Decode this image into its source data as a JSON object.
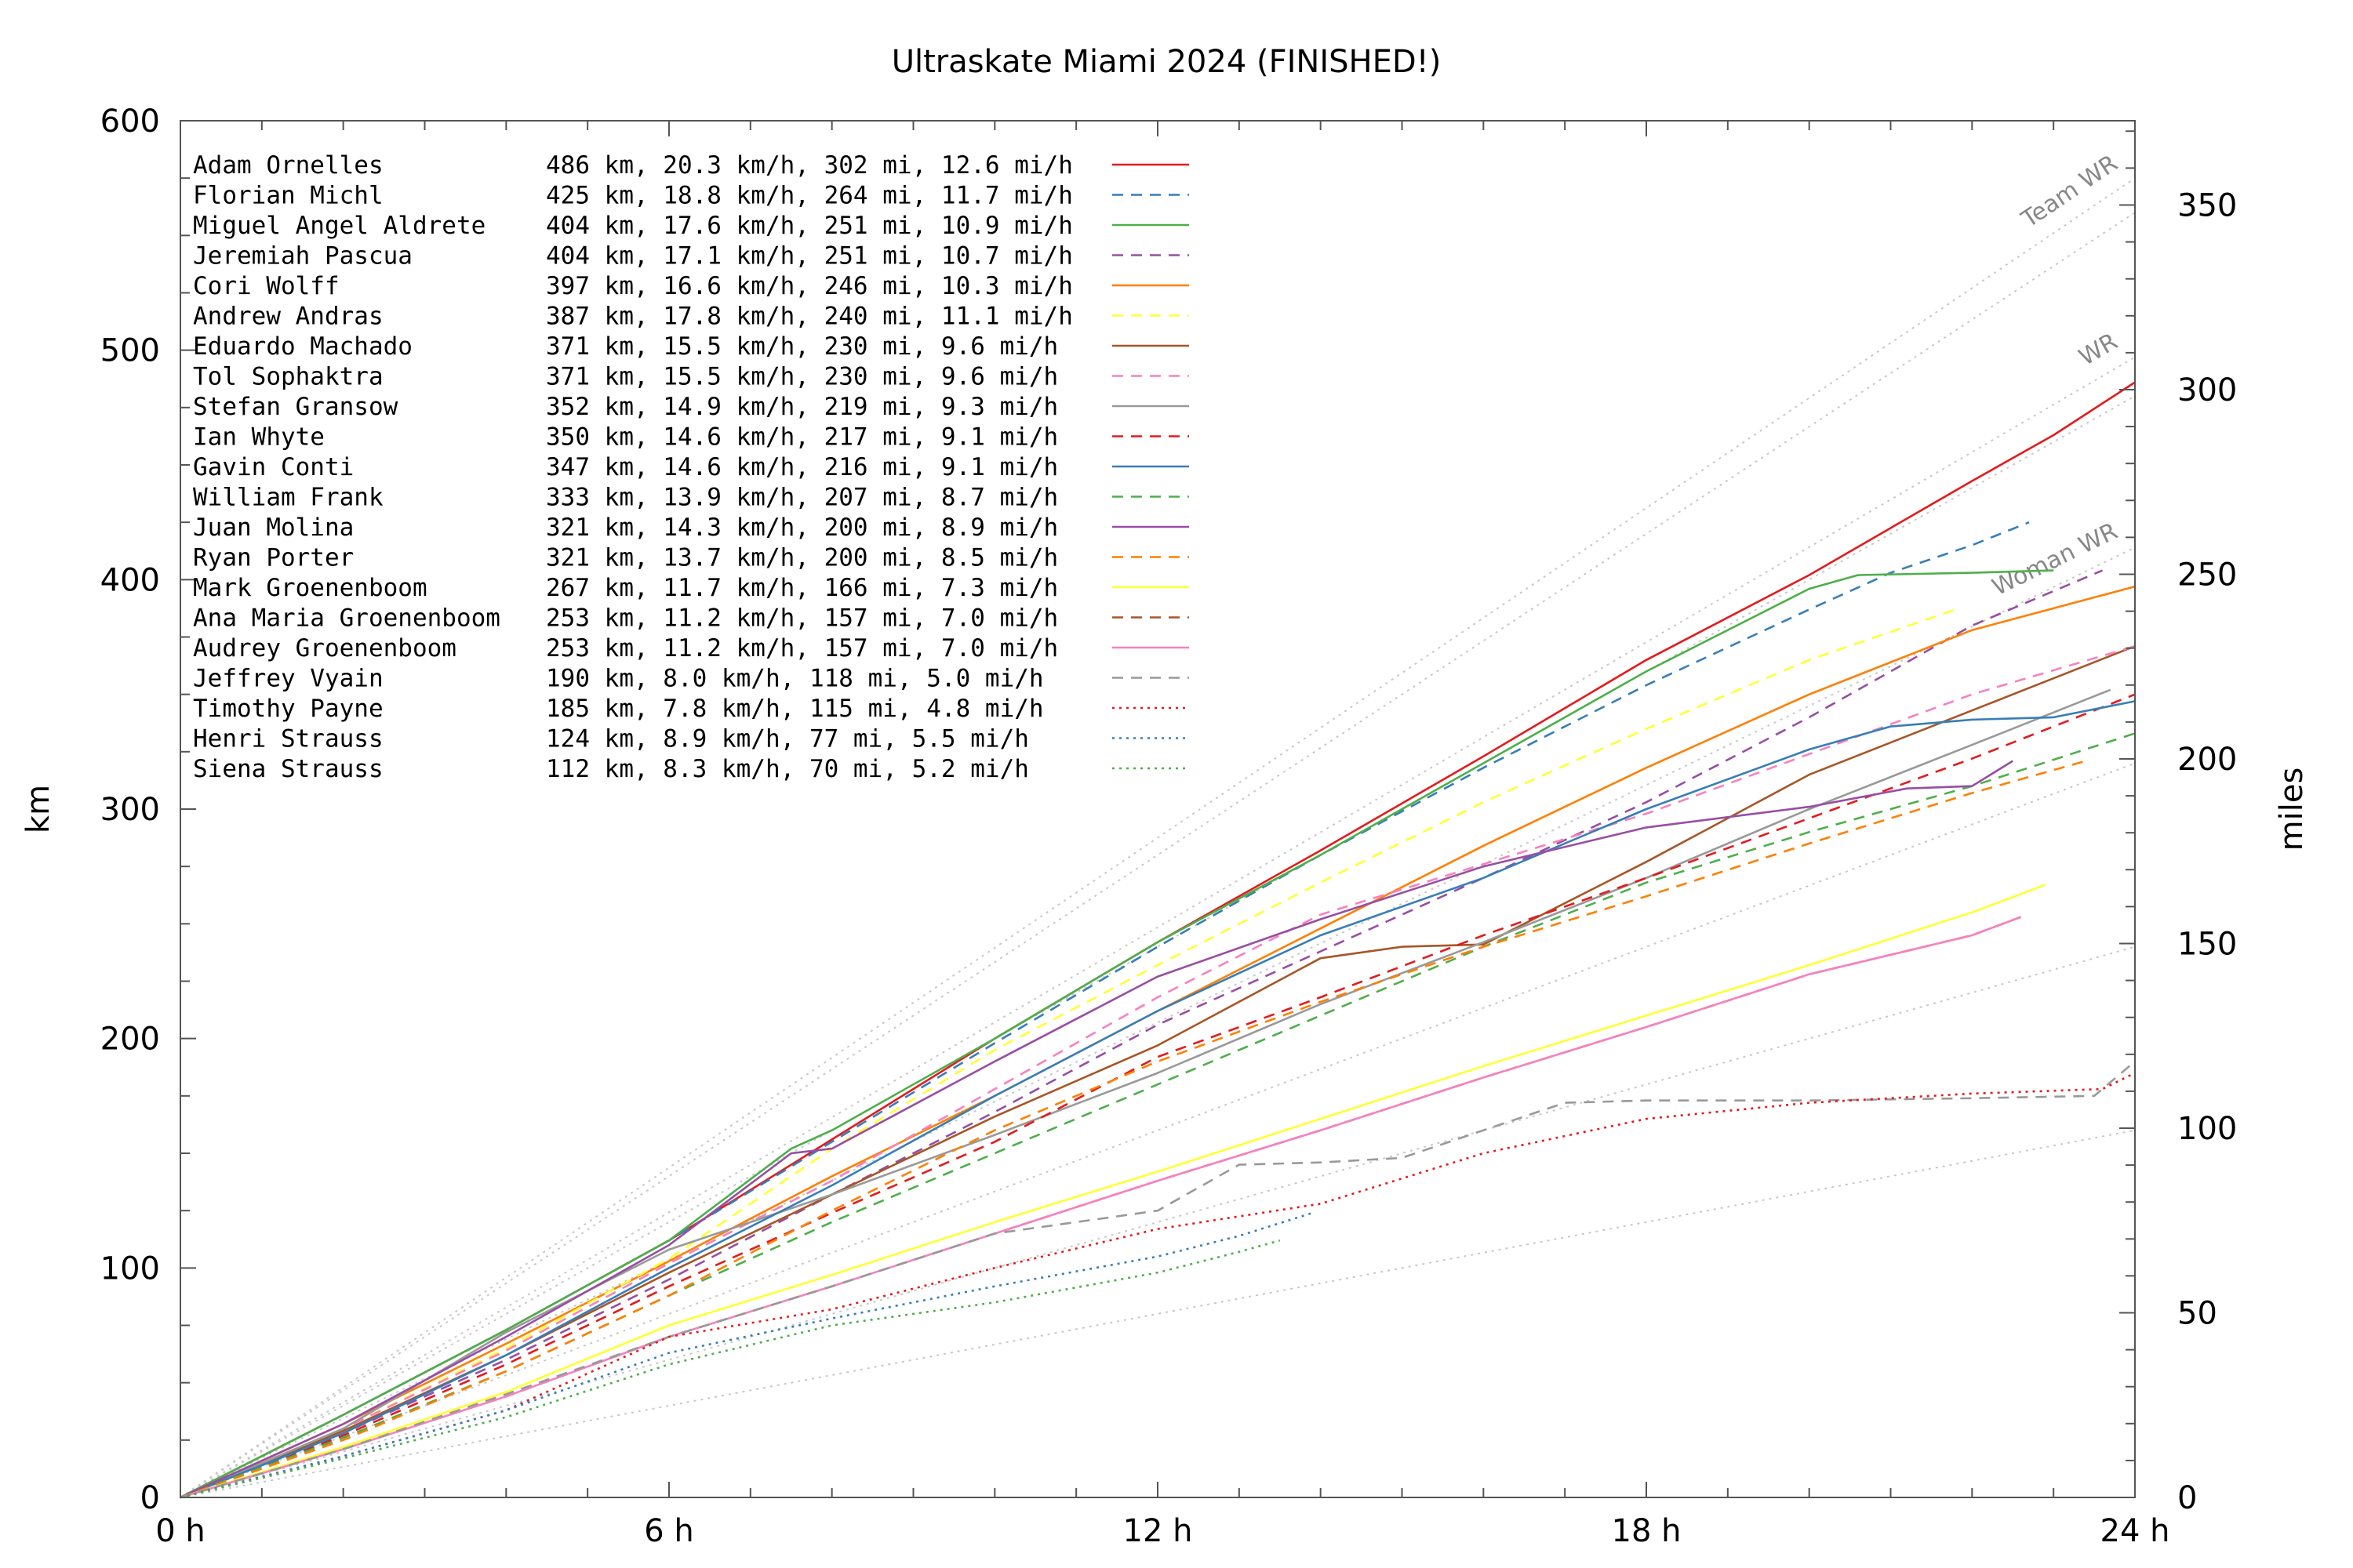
{
  "chart_data": {
    "type": "line",
    "title": "Ultraskate Miami 2024 (FINISHED!)",
    "xlabel": "",
    "ylabel": "km",
    "y2label": "miles",
    "xlim": [
      0,
      24
    ],
    "ylim": [
      0,
      600
    ],
    "y2lim": [
      0,
      372.82
    ],
    "x_ticks": [
      {
        "value": 0,
        "label": "0 h"
      },
      {
        "value": 6,
        "label": "6 h"
      },
      {
        "value": 12,
        "label": "12 h"
      },
      {
        "value": 18,
        "label": "18 h"
      },
      {
        "value": 24,
        "label": "24 h"
      }
    ],
    "y_ticks": [
      {
        "value": 0,
        "label": "0"
      },
      {
        "value": 100,
        "label": "100"
      },
      {
        "value": 200,
        "label": "200"
      },
      {
        "value": 300,
        "label": "300"
      },
      {
        "value": 400,
        "label": "400"
      },
      {
        "value": 500,
        "label": "500"
      },
      {
        "value": 600,
        "label": "600"
      }
    ],
    "y2_ticks": [
      {
        "value": 0,
        "label": "0"
      },
      {
        "value": 50,
        "label": "50"
      },
      {
        "value": 100,
        "label": "100"
      },
      {
        "value": 150,
        "label": "150"
      },
      {
        "value": 200,
        "label": "200"
      },
      {
        "value": 250,
        "label": "250"
      },
      {
        "value": 300,
        "label": "300"
      },
      {
        "value": 350,
        "label": "350"
      }
    ],
    "grid": false,
    "legend_position": "top-left",
    "reference_lines": [
      {
        "label": "Team WR",
        "end_km": 575
      },
      {
        "label": "",
        "end_km": 560
      },
      {
        "label": "WR",
        "end_km": 497
      },
      {
        "label": "",
        "end_km": 480
      },
      {
        "label": "Woman WR",
        "end_km": 414
      },
      {
        "label": "",
        "end_km": 320
      },
      {
        "label": "",
        "end_km": 240
      },
      {
        "label": "",
        "end_km": 160
      }
    ],
    "series": [
      {
        "name": "Adam Ornelles",
        "stats": "486 km, 20.3 km/h, 302 mi, 12.6 mi/h",
        "color": "#e41a1c",
        "dash": "solid",
        "x": [
          0,
          2,
          4,
          6,
          8,
          10,
          12,
          14,
          16,
          18,
          20,
          22,
          23,
          24
        ],
        "y": [
          0,
          36,
          73,
          112,
          156,
          200,
          242,
          282,
          323,
          365,
          402,
          443,
          463,
          486
        ]
      },
      {
        "name": "Florian Michl",
        "stats": "425 km, 18.8 km/h, 264 mi, 11.7 mi/h",
        "color": "#377eb8",
        "dash": "dashed",
        "x": [
          0,
          2,
          4,
          6,
          8,
          10,
          12,
          14,
          16,
          18,
          20,
          21,
          22,
          22.7
        ],
        "y": [
          0,
          36,
          73,
          112,
          155,
          198,
          240,
          280,
          318,
          354,
          387,
          403,
          415,
          425
        ]
      },
      {
        "name": "Miguel Angel Aldrete",
        "stats": "404 km, 17.6 km/h, 251 mi, 10.9 mi/h",
        "color": "#4daf4a",
        "dash": "solid",
        "x": [
          0,
          2,
          4,
          6,
          7.5,
          8,
          10,
          12,
          14,
          16,
          18,
          20,
          20.6,
          22,
          23
        ],
        "y": [
          0,
          36,
          73,
          112,
          152,
          160,
          200,
          242,
          280,
          320,
          360,
          396,
          402,
          403,
          404
        ]
      },
      {
        "name": "Jeremiah Pascua",
        "stats": "404 km, 17.1 km/h, 251 mi, 10.7 mi/h",
        "color": "#984ea3",
        "dash": "dashed",
        "x": [
          0,
          2,
          4,
          6,
          8,
          10,
          12,
          14,
          16,
          18,
          20,
          22,
          23.6
        ],
        "y": [
          0,
          28,
          60,
          95,
          132,
          168,
          206,
          238,
          270,
          303,
          340,
          380,
          404
        ]
      },
      {
        "name": "Cori Wolff",
        "stats": "397 km, 16.6 km/h, 246 mi, 10.3 mi/h",
        "color": "#ff7f00",
        "dash": "solid",
        "x": [
          0,
          2,
          4,
          6,
          8,
          10,
          12,
          14,
          16,
          18,
          20,
          22,
          24
        ],
        "y": [
          0,
          32,
          67,
          103,
          140,
          175,
          212,
          248,
          284,
          318,
          350,
          378,
          397
        ]
      },
      {
        "name": "Andrew Andras",
        "stats": "387 km, 17.8 km/h, 240 mi, 11.1 mi/h",
        "color": "#ffff33",
        "dash": "dashed",
        "x": [
          0,
          2,
          4,
          6,
          8,
          10,
          12,
          14,
          16,
          18,
          20,
          21.8
        ],
        "y": [
          0,
          30,
          65,
          104,
          152,
          195,
          232,
          268,
          303,
          335,
          365,
          387
        ]
      },
      {
        "name": "Eduardo Machado",
        "stats": "371 km, 15.5 km/h, 230 mi, 9.6 mi/h",
        "color": "#a65628",
        "dash": "solid",
        "x": [
          0,
          2,
          4,
          6,
          8,
          10,
          12,
          14,
          15,
          16,
          18,
          20,
          22,
          24
        ],
        "y": [
          0,
          29,
          62,
          98,
          132,
          166,
          197,
          235,
          240,
          241,
          277,
          315,
          343,
          371
        ]
      },
      {
        "name": "Tol Sophaktra",
        "stats": "371 km, 15.5 km/h, 230 mi, 9.6 mi/h",
        "color": "#f781bf",
        "dash": "dashed",
        "x": [
          0,
          2,
          4,
          6,
          8,
          10,
          12,
          14,
          16,
          18,
          20,
          22,
          24
        ],
        "y": [
          0,
          30,
          64,
          102,
          138,
          178,
          218,
          254,
          276,
          298,
          324,
          350,
          371
        ]
      },
      {
        "name": "Stefan Gransow",
        "stats": "352 km, 14.9 km/h, 219 mi, 9.3 mi/h",
        "color": "#999999",
        "dash": "solid",
        "x": [
          0,
          2,
          4,
          6,
          8,
          10,
          12,
          14,
          16,
          18,
          20,
          22,
          23.7
        ],
        "y": [
          0,
          30,
          72,
          108,
          132,
          158,
          185,
          215,
          242,
          270,
          300,
          328,
          352
        ]
      },
      {
        "name": "Ian Whyte",
        "stats": "350 km, 14.6 km/h, 217 mi, 9.1 mi/h",
        "color": "#e41a1c",
        "dash": "dashed",
        "x": [
          0,
          2,
          4,
          6,
          8,
          10,
          12,
          14,
          16,
          18,
          20,
          22,
          24
        ],
        "y": [
          0,
          27,
          58,
          92,
          124,
          155,
          192,
          218,
          245,
          270,
          296,
          322,
          350
        ]
      },
      {
        "name": "Gavin Conti",
        "stats": "347 km, 14.6 km/h, 216 mi, 9.1 mi/h",
        "color": "#377eb8",
        "dash": "solid",
        "x": [
          0,
          2,
          4,
          6,
          8,
          10,
          12,
          14,
          16,
          18,
          20,
          21,
          22,
          23,
          24
        ],
        "y": [
          0,
          28,
          62,
          100,
          136,
          175,
          212,
          245,
          270,
          300,
          326,
          336,
          339,
          340,
          347
        ]
      },
      {
        "name": "William Frank",
        "stats": "333 km, 13.9 km/h, 207 mi, 8.7 mi/h",
        "color": "#4daf4a",
        "dash": "dashed",
        "x": [
          0,
          2,
          4,
          6,
          8,
          10,
          12,
          14,
          16,
          18,
          20,
          22,
          24
        ],
        "y": [
          0,
          26,
          55,
          88,
          120,
          150,
          180,
          210,
          240,
          268,
          290,
          310,
          333
        ]
      },
      {
        "name": "Juan Molina",
        "stats": "321 km, 14.3 km/h, 200 mi, 8.9 mi/h",
        "color": "#984ea3",
        "dash": "solid",
        "x": [
          0,
          2,
          4,
          6,
          7.5,
          8,
          10,
          12,
          14,
          16,
          18,
          20,
          21.2,
          22,
          22.5
        ],
        "y": [
          0,
          32,
          70,
          110,
          150,
          152,
          190,
          227,
          252,
          275,
          292,
          301,
          309,
          310,
          321
        ]
      },
      {
        "name": "Ryan Porter",
        "stats": "321 km, 13.7 km/h, 200 mi, 8.5 mi/h",
        "color": "#ff7f00",
        "dash": "dashed",
        "x": [
          0,
          2,
          4,
          6,
          8,
          10,
          12,
          14,
          16,
          18,
          20,
          22,
          23.4
        ],
        "y": [
          0,
          25,
          55,
          88,
          125,
          160,
          190,
          216,
          240,
          262,
          285,
          307,
          321
        ]
      },
      {
        "name": "Mark Groenenboom",
        "stats": "267 km, 11.7 km/h, 166 mi, 7.3 mi/h",
        "color": "#ffff33",
        "dash": "solid",
        "x": [
          0,
          2,
          4,
          6,
          8,
          10,
          12,
          14,
          16,
          18,
          20,
          22,
          22.9
        ],
        "y": [
          0,
          22,
          46,
          75,
          97,
          120,
          142,
          165,
          188,
          210,
          232,
          255,
          267
        ]
      },
      {
        "name": "Ana Maria Groenenboom",
        "stats": "253 km, 11.2 km/h, 157 mi, 7.0 mi/h",
        "color": "#a65628",
        "dash": "dashed",
        "x": [
          0,
          2,
          4,
          6,
          8,
          10,
          12,
          14,
          16,
          18,
          20,
          22,
          22.6
        ],
        "y": [
          0,
          21,
          44,
          70,
          92,
          115,
          138,
          160,
          183,
          205,
          228,
          245,
          253
        ]
      },
      {
        "name": "Audrey Groenenboom",
        "stats": "253 km, 11.2 km/h, 157 mi, 7.0 mi/h",
        "color": "#f781bf",
        "dash": "solid",
        "x": [
          0,
          2,
          4,
          6,
          8,
          10,
          12,
          14,
          16,
          18,
          20,
          22,
          22.6
        ],
        "y": [
          0,
          21,
          44,
          70,
          92,
          115,
          138,
          160,
          183,
          205,
          228,
          245,
          253
        ]
      },
      {
        "name": "Jeffrey Vyain",
        "stats": "190 km, 8.0 km/h, 118 mi, 5.0 mi/h",
        "color": "#999999",
        "dash": "dashed",
        "x": [
          0,
          2,
          4,
          6,
          8,
          10,
          12,
          13,
          14,
          15,
          16,
          17,
          18,
          20,
          22,
          23.5,
          24
        ],
        "y": [
          0,
          21,
          45,
          70,
          92,
          115,
          125,
          145,
          146,
          148,
          160,
          172,
          173,
          173,
          174,
          175,
          190
        ]
      },
      {
        "name": "Timothy Payne",
        "stats": "185 km, 7.8 km/h, 115 mi, 4.8 mi/h",
        "color": "#e41a1c",
        "dash": "dotted",
        "x": [
          0,
          2,
          4,
          6,
          8,
          10,
          12,
          14,
          16,
          18,
          20,
          22,
          23.6,
          24
        ],
        "y": [
          0,
          18,
          38,
          70,
          82,
          100,
          117,
          128,
          150,
          165,
          172,
          176,
          178,
          185
        ]
      },
      {
        "name": "Henri Strauss",
        "stats": "124 km, 8.9 km/h, 77 mi, 5.5 mi/h",
        "color": "#377eb8",
        "dash": "dotted",
        "x": [
          0,
          2,
          4,
          6,
          8,
          10,
          12,
          13,
          13.9
        ],
        "y": [
          0,
          18,
          38,
          63,
          78,
          92,
          105,
          114,
          124
        ]
      },
      {
        "name": "Siena Strauss",
        "stats": "112 km, 8.3 km/h, 70 mi, 5.2 mi/h",
        "color": "#4daf4a",
        "dash": "dotted",
        "x": [
          0,
          2,
          4,
          6,
          8,
          10,
          12,
          13,
          13.5
        ],
        "y": [
          0,
          17,
          35,
          58,
          75,
          85,
          98,
          107,
          112
        ]
      }
    ]
  }
}
